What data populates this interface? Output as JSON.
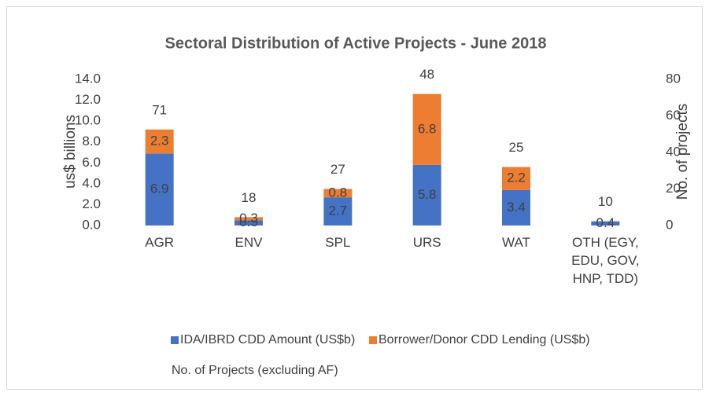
{
  "chart_data": {
    "type": "bar",
    "stacked": true,
    "title": "Sectoral Distribution of Active Projects - June 2018",
    "y_label": "us$ billions",
    "y2_label": "No. of projects",
    "categories": [
      "AGR",
      "ENV",
      "SPL",
      "URS",
      "WAT",
      "OTH (EGY, EDU, GOV, HNP, TDD)"
    ],
    "series": [
      {
        "name": "IDA/IBRD CDD Amount (US$b)",
        "color": "#4472c4",
        "values": [
          6.9,
          0.5,
          2.7,
          5.8,
          3.4,
          0.4
        ]
      },
      {
        "name": "Borrower/Donor CDD Lending (US$b)",
        "color": "#ed7d31",
        "values": [
          2.3,
          0.3,
          0.8,
          6.8,
          2.2,
          null
        ]
      },
      {
        "name": "No. of Projects (excluding AF)",
        "axis": "y2",
        "values": [
          71,
          18,
          27,
          48,
          25,
          10
        ]
      }
    ],
    "ylim": [
      0,
      14
    ],
    "yticks": [
      {
        "value": 0,
        "label": "0.0"
      },
      {
        "value": 2,
        "label": "2.0"
      },
      {
        "value": 4,
        "label": "4.0"
      },
      {
        "value": 6,
        "label": "6.0"
      },
      {
        "value": 8,
        "label": "8.0"
      },
      {
        "value": 10,
        "label": "10.0"
      },
      {
        "value": 12,
        "label": "12.0"
      },
      {
        "value": 14,
        "label": "14.0"
      }
    ],
    "y2lim": [
      0,
      80
    ],
    "y2ticks": [
      0,
      20,
      40,
      60,
      80
    ],
    "grid": false
  }
}
